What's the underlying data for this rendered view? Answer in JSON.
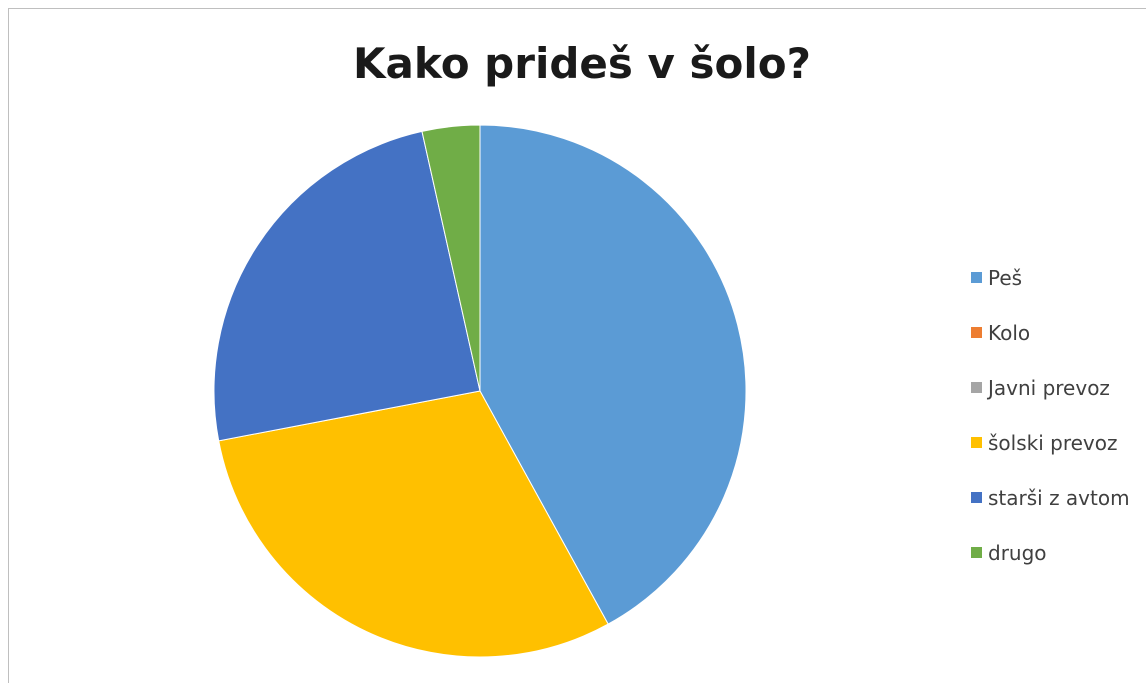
{
  "chart_data": {
    "type": "pie",
    "title": "Kako prideš v šolo?",
    "categories": [
      "Peš",
      "Kolo",
      "Javni prevoz",
      "šolski prevoz",
      "starši z avtom",
      "drugo"
    ],
    "values": [
      42,
      0,
      0,
      30,
      24.5,
      3.5
    ],
    "colors": [
      "#5B9BD5",
      "#ED7D31",
      "#A5A5A5",
      "#FFC000",
      "#4472C4",
      "#70AD47"
    ],
    "legend_position": "right"
  }
}
